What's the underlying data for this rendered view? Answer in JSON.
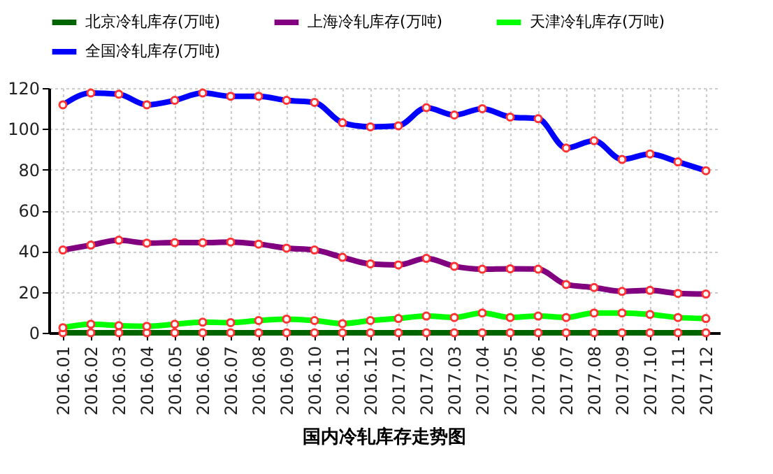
{
  "chart_data": {
    "type": "line",
    "title": "国内冷轧库存走势图",
    "categories": [
      "2016.01",
      "2016.02",
      "2016.03",
      "2016.04",
      "2016.05",
      "2016.06",
      "2016.07",
      "2016.08",
      "2016.09",
      "2016.10",
      "2016.11",
      "2016.12",
      "2017.01",
      "2017.02",
      "2017.03",
      "2017.04",
      "2017.05",
      "2017.06",
      "2017.07",
      "2017.08",
      "2017.09",
      "2017.10",
      "2017.11",
      "2017.12"
    ],
    "series": [
      {
        "name": "北京冷轧库存(万吨)",
        "color": "#006400",
        "values": [
          0,
          0,
          0,
          0,
          0,
          0,
          0,
          0,
          0,
          0,
          0,
          0,
          0,
          0,
          0,
          0,
          0,
          0,
          0,
          0,
          0,
          0,
          0,
          0
        ]
      },
      {
        "name": "上海冷轧库存(万吨)",
        "color": "#800080",
        "values": [
          40.6,
          43,
          45.4,
          44,
          44.2,
          44.2,
          44.5,
          43.5,
          41.5,
          40.6,
          37,
          33.8,
          33.3,
          36.5,
          32.6,
          31.2,
          31.4,
          31.2,
          23.7,
          22.2,
          20.3,
          20.8,
          19.3,
          19
        ]
      },
      {
        "name": "天津冷轧库存(万吨)",
        "color": "#00ff00",
        "values": [
          2.5,
          4.2,
          3.5,
          3.2,
          4.2,
          5.2,
          5,
          6,
          6.7,
          6,
          4.5,
          6,
          7,
          8.2,
          7.5,
          9.7,
          7.5,
          8.2,
          7.5,
          9.7,
          9.7,
          9,
          7.5,
          7
        ]
      },
      {
        "name": "全国冷轧库存(万吨)",
        "color": "#0000ff",
        "values": [
          111.8,
          117.6,
          117,
          111.8,
          114,
          117.6,
          116,
          116,
          114,
          113,
          103,
          101,
          101.5,
          110.4,
          106.8,
          109.9,
          105.8,
          105,
          90.6,
          94.2,
          85,
          87.7,
          83.8,
          79.5
        ]
      }
    ],
    "ylim": [
      0,
      120
    ],
    "yticks": [
      0,
      20,
      40,
      60,
      80,
      100,
      120
    ],
    "grid": true,
    "legend": "top",
    "marker": "circle",
    "line_style": "solid"
  }
}
